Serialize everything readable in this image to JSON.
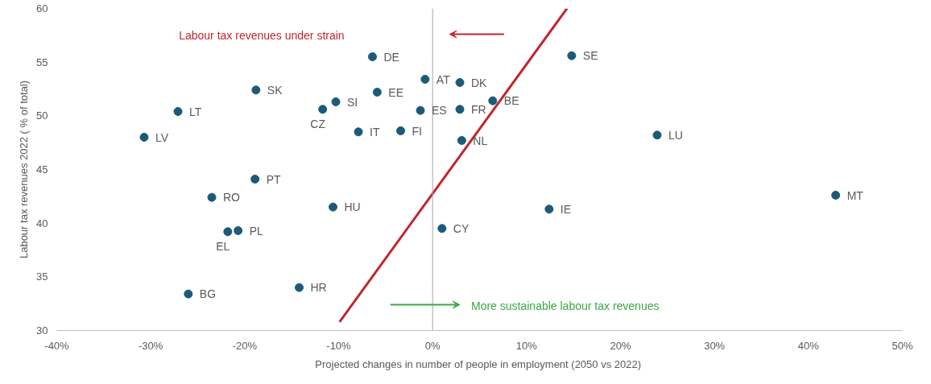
{
  "chart_data": {
    "type": "scatter",
    "xlabel": "Projected changes in number of people in employment  (2050 vs 2022)",
    "ylabel": "Labour tax revenues 2022 ( % of total)",
    "xlim": [
      -40,
      50
    ],
    "ylim": [
      30,
      60
    ],
    "xticks": [
      {
        "value": -40,
        "label": "-40%"
      },
      {
        "value": -30,
        "label": "-30%"
      },
      {
        "value": -20,
        "label": "-20%"
      },
      {
        "value": -10,
        "label": "-10%"
      },
      {
        "value": 0,
        "label": "0%"
      },
      {
        "value": 10,
        "label": "10%"
      },
      {
        "value": 20,
        "label": "20%"
      },
      {
        "value": 30,
        "label": "30%"
      },
      {
        "value": 40,
        "label": "40%"
      },
      {
        "value": 50,
        "label": "50%"
      }
    ],
    "yticks": [
      30,
      35,
      40,
      45,
      50,
      55,
      60
    ],
    "grid": false,
    "series": [
      {
        "marker": "circle",
        "color": "#1b5a78",
        "x": [
          -6.4,
          -0.8,
          2.9,
          14.8,
          -5.9,
          -18.8,
          -10.3,
          -11.7,
          -1.3,
          2.9,
          6.4,
          -27.1,
          -30.7,
          -7.9,
          -3.4,
          3.1,
          23.9,
          -18.9,
          -23.5,
          -10.6,
          42.9,
          12.4,
          1.0,
          -21.8,
          -20.7,
          -14.2,
          -26.0
        ],
        "values": [
          55.5,
          53.4,
          53.1,
          55.6,
          52.2,
          52.4,
          51.3,
          50.6,
          50.5,
          50.6,
          51.4,
          50.4,
          48.0,
          48.5,
          48.6,
          47.7,
          48.2,
          44.1,
          42.4,
          41.5,
          42.6,
          41.3,
          39.5,
          39.2,
          39.3,
          34.0,
          33.4
        ]
      },
      {
        "type": "line",
        "marker": "none",
        "color": "#c0272d",
        "x": [
          -9.9,
          14.3
        ],
        "values": [
          30.8,
          60.0
        ]
      }
    ],
    "ref_lines": [
      {
        "axis": "x",
        "value": 0,
        "color": "#a6a6a6",
        "line_style": "solid"
      }
    ],
    "annotations": [
      "Labour tax revenues under strain",
      "More sustainable labour tax revenues",
      {
        "text": "DE",
        "x": -6.4,
        "y": 55.5
      },
      {
        "text": "AT",
        "x": -0.8,
        "y": 53.4
      },
      {
        "text": "DK",
        "x": 2.9,
        "y": 53.1
      },
      {
        "text": "SE",
        "x": 14.8,
        "y": 55.6
      },
      {
        "text": "EE",
        "x": -5.9,
        "y": 52.2
      },
      {
        "text": "SK",
        "x": -18.8,
        "y": 52.4
      },
      {
        "text": "SI",
        "x": -10.3,
        "y": 51.3
      },
      {
        "text": "CZ",
        "x": -11.7,
        "y": 50.6
      },
      {
        "text": "ES",
        "x": -1.3,
        "y": 50.5
      },
      {
        "text": "FR",
        "x": 2.9,
        "y": 50.6
      },
      {
        "text": "BE",
        "x": 6.4,
        "y": 51.4
      },
      {
        "text": "LT",
        "x": -27.1,
        "y": 50.4
      },
      {
        "text": "LV",
        "x": -30.7,
        "y": 48.0
      },
      {
        "text": "IT",
        "x": -7.9,
        "y": 48.5
      },
      {
        "text": "FI",
        "x": -3.4,
        "y": 48.6
      },
      {
        "text": "NL",
        "x": 3.1,
        "y": 47.7
      },
      {
        "text": "LU",
        "x": 23.9,
        "y": 48.2
      },
      {
        "text": "PT",
        "x": -18.9,
        "y": 44.1
      },
      {
        "text": "RO",
        "x": -23.5,
        "y": 42.4
      },
      {
        "text": "HU",
        "x": -10.6,
        "y": 41.5
      },
      {
        "text": "MT",
        "x": 42.9,
        "y": 42.6
      },
      {
        "text": "IE",
        "x": 12.4,
        "y": 41.3
      },
      {
        "text": "CY",
        "x": 1.0,
        "y": 39.5
      },
      {
        "text": "EL",
        "x": -21.8,
        "y": 39.2
      },
      {
        "text": "PL",
        "x": -20.7,
        "y": 39.3
      },
      {
        "text": "HR",
        "x": -14.2,
        "y": 34.0
      },
      {
        "text": "BG",
        "x": -26.0,
        "y": 33.4
      }
    ]
  }
}
